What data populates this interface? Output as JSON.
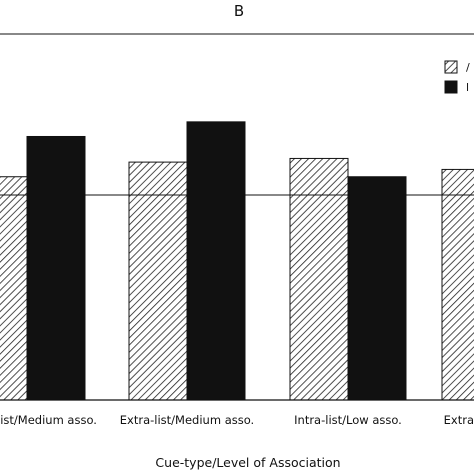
{
  "chart_data": {
    "type": "bar",
    "panel_label": "B",
    "xlabel": "Cue-type/Level of Association",
    "ylabel": "",
    "categories": [
      "Intra-list/Medium asso.",
      "Extra-list/Medium asso.",
      "Intra-list/Low asso.",
      "Extra-list/Low asso."
    ],
    "visible_tick_text": [
      "list/Medium asso.",
      "Extra-list/Medium asso.",
      "Intra-list/Low asso.",
      "Extra"
    ],
    "series": [
      {
        "name": "",
        "pattern": "hatched",
        "values": [
          0.61,
          0.65,
          0.66,
          0.63
        ]
      },
      {
        "name": "",
        "pattern": "solid-black",
        "values": [
          0.72,
          0.76,
          0.61,
          null
        ]
      }
    ],
    "reference_line": 0.56,
    "ylim": [
      0,
      1
    ],
    "legend": {
      "placement": "top-right",
      "visible_text": [
        "/",
        "l"
      ]
    },
    "grid": false,
    "colors": {
      "hatched_bar": "#ffffff",
      "hatch_lines": "#222222",
      "solid_bar": "#111111"
    }
  }
}
